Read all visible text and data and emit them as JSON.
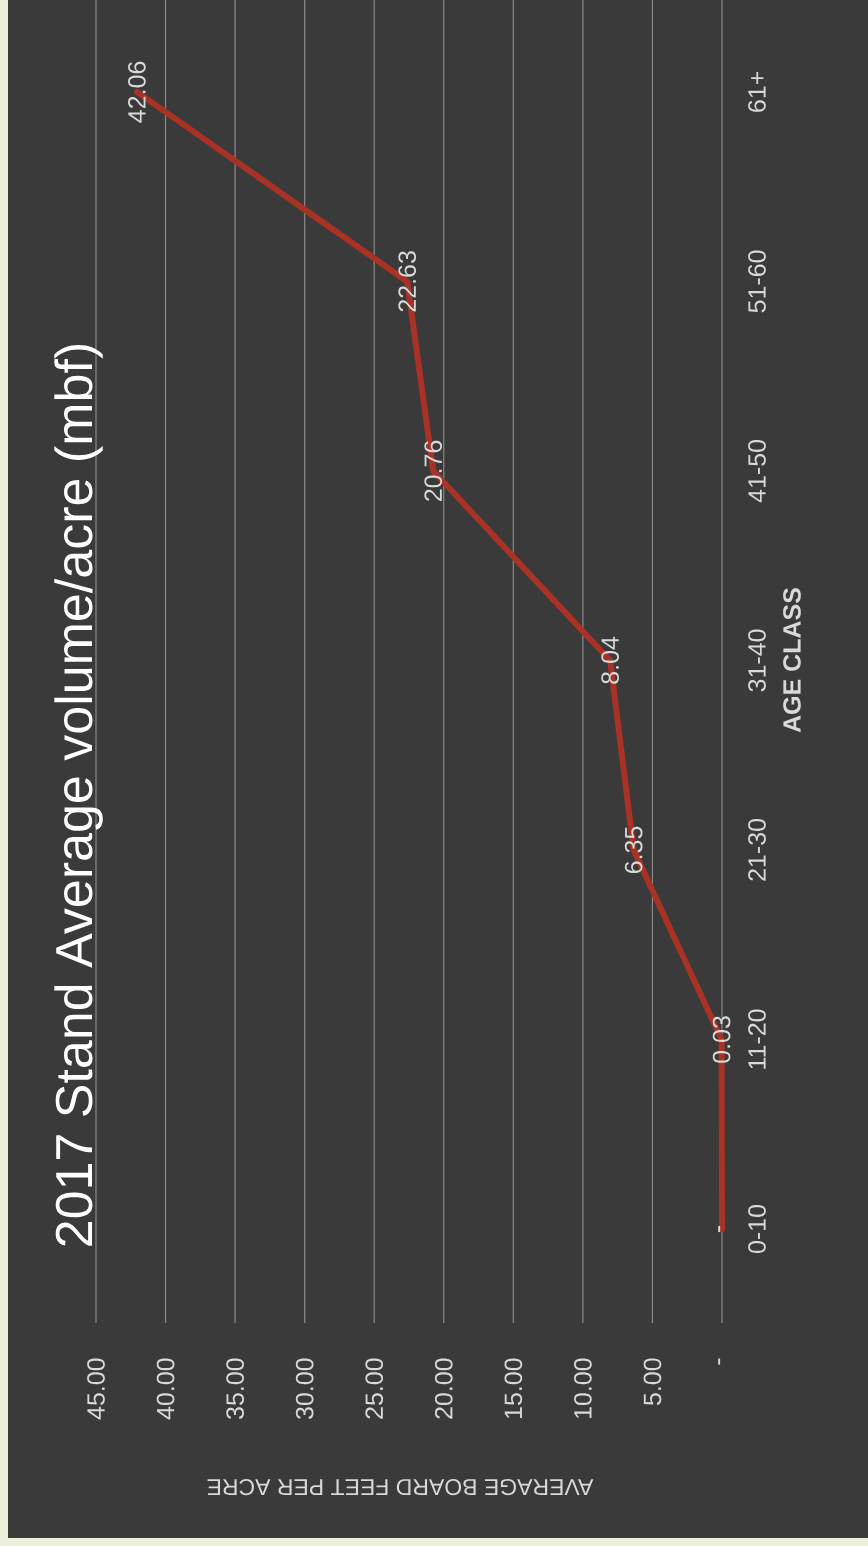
{
  "chart_data": {
    "type": "line",
    "orientation": "horizontal",
    "title": "2017 Stand Average volume/acre (mbf)",
    "xlabel": "AVERAGE BOARD FEET PER ACRE",
    "ylabel": "AGE CLASS",
    "categories": [
      "61+",
      "51-60",
      "41-50",
      "31-40",
      "21-30",
      "11-20",
      "0-10"
    ],
    "values": [
      42.06,
      22.63,
      20.76,
      8.04,
      6.35,
      0.03,
      0
    ],
    "value_labels": [
      "42.06",
      "22.63",
      "20.76",
      "8.04",
      "6.35",
      "0.03",
      "-"
    ],
    "color": "#a93226",
    "line_style": "solid",
    "marker": "none",
    "xlim": [
      45,
      0
    ],
    "xticks": [
      {
        "value": 45,
        "label": "45.00"
      },
      {
        "value": 40,
        "label": "40.00"
      },
      {
        "value": 35,
        "label": "35.00"
      },
      {
        "value": 30,
        "label": "30.00"
      },
      {
        "value": 25,
        "label": "25.00"
      },
      {
        "value": 20,
        "label": "20.00"
      },
      {
        "value": 15,
        "label": "15.00"
      },
      {
        "value": 10,
        "label": "10.00"
      },
      {
        "value": 5,
        "label": "5.00"
      },
      {
        "value": 0,
        "label": "-"
      }
    ],
    "grid": "x"
  }
}
